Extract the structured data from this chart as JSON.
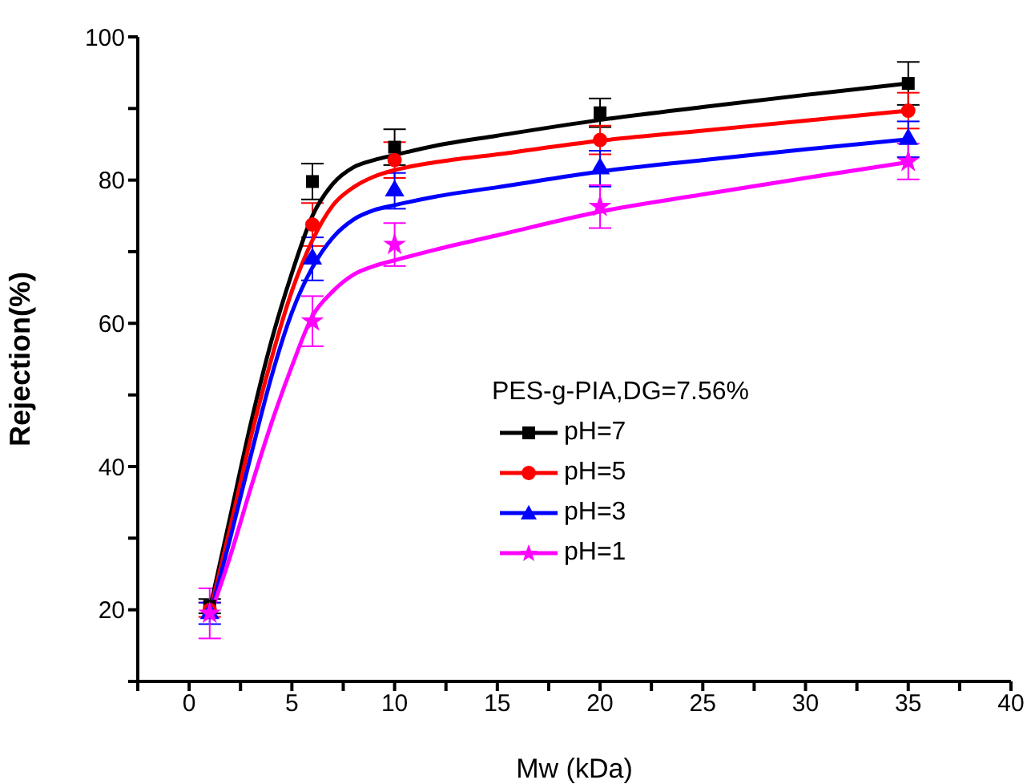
{
  "chart_data": {
    "type": "scatter",
    "xlabel": "Mw (kDa)",
    "ylabel": "Rejection(%)",
    "legend_title": "PES-g-PIA,DG=7.56%",
    "legend": "bottom right",
    "grid": false,
    "xlim": [
      -2.5,
      40
    ],
    "ylim": [
      10,
      100
    ],
    "xticks": [
      {
        "value": -2.5,
        "label": null
      },
      0,
      {
        "value": 2.5,
        "label": null
      },
      5,
      {
        "value": 7.5,
        "label": null
      },
      10,
      {
        "value": 12.5,
        "label": null
      },
      15,
      {
        "value": 17.5,
        "label": null
      },
      20,
      {
        "value": 22.5,
        "label": null
      },
      25,
      {
        "value": 27.5,
        "label": null
      },
      30,
      {
        "value": 32.5,
        "label": null
      },
      35,
      {
        "value": 37.5,
        "label": null
      },
      40
    ],
    "yticks": [
      {
        "value": 10,
        "label": null
      },
      20,
      {
        "value": 30,
        "label": null
      },
      40,
      {
        "value": 50,
        "label": null
      },
      60,
      {
        "value": 70,
        "label": null
      },
      80,
      {
        "value": 90,
        "label": null
      },
      100
    ],
    "series": [
      {
        "name": "pH=7",
        "marker": "square",
        "color": "#000000",
        "x": [
          1,
          6,
          10,
          20,
          35
        ],
        "values": [
          20.5,
          79.8,
          84.6,
          89.4,
          93.5
        ],
        "errors": [
          1,
          2.5,
          2.5,
          2,
          3
        ]
      },
      {
        "name": "pH=5",
        "marker": "circle",
        "color": "#ff0000",
        "x": [
          1,
          6,
          10,
          20,
          35
        ],
        "values": [
          20,
          73.8,
          82.8,
          85.6,
          89.7
        ],
        "errors": [
          1,
          3,
          2.5,
          2,
          2.5
        ]
      },
      {
        "name": "pH=3",
        "marker": "triangle",
        "color": "#0000ff",
        "x": [
          1,
          6,
          10,
          20,
          35
        ],
        "values": [
          19.5,
          69,
          78.5,
          81.6,
          85.7
        ],
        "errors": [
          1.5,
          3,
          2.5,
          2.5,
          2.5
        ]
      },
      {
        "name": "pH=1",
        "marker": "star",
        "color": "#ff00ff",
        "x": [
          1,
          6,
          10,
          20,
          35
        ],
        "values": [
          19.5,
          60.3,
          71,
          76.3,
          82.6
        ],
        "errors": [
          3.5,
          3.5,
          3,
          3,
          2.5
        ]
      },
      {
        "type": "line",
        "marker": "none",
        "color": "#000000",
        "x": [
          1,
          2,
          3,
          4,
          5,
          6,
          7,
          8,
          9,
          10,
          12,
          15,
          20,
          25,
          30,
          35
        ],
        "values": [
          20,
          33,
          46,
          57.5,
          67,
          75,
          79.5,
          81.8,
          82.8,
          83.5,
          84.8,
          86.2,
          88.4,
          90.2,
          91.9,
          93.5
        ]
      },
      {
        "type": "line",
        "marker": "none",
        "color": "#ff0000",
        "x": [
          1,
          2,
          3,
          4,
          5,
          6,
          7,
          8,
          9,
          10,
          12,
          15,
          20,
          25,
          30,
          35
        ],
        "values": [
          19.5,
          31.5,
          44,
          55,
          64.5,
          71.6,
          76.5,
          79,
          80.5,
          81.4,
          82.5,
          83.6,
          85.5,
          86.9,
          88.3,
          89.7
        ]
      },
      {
        "type": "line",
        "marker": "none",
        "color": "#0000ff",
        "x": [
          1,
          2,
          3,
          4,
          5,
          6,
          7,
          8,
          9,
          10,
          12,
          15,
          20,
          25,
          30,
          35
        ],
        "values": [
          19,
          30,
          41.5,
          52.5,
          61.5,
          67.8,
          72,
          74.5,
          75.8,
          76.5,
          77.7,
          79,
          81.2,
          82.8,
          84.3,
          85.7
        ]
      },
      {
        "type": "line",
        "marker": "none",
        "color": "#ff00ff",
        "x": [
          1,
          2,
          3,
          4,
          5,
          6,
          7,
          8,
          9,
          10,
          12,
          15,
          20,
          25,
          30,
          35
        ],
        "values": [
          19,
          27.5,
          37,
          46,
          54,
          61,
          64.5,
          66.8,
          68,
          68.8,
          70.3,
          72.3,
          75.6,
          78,
          80.3,
          82.5
        ]
      }
    ]
  }
}
